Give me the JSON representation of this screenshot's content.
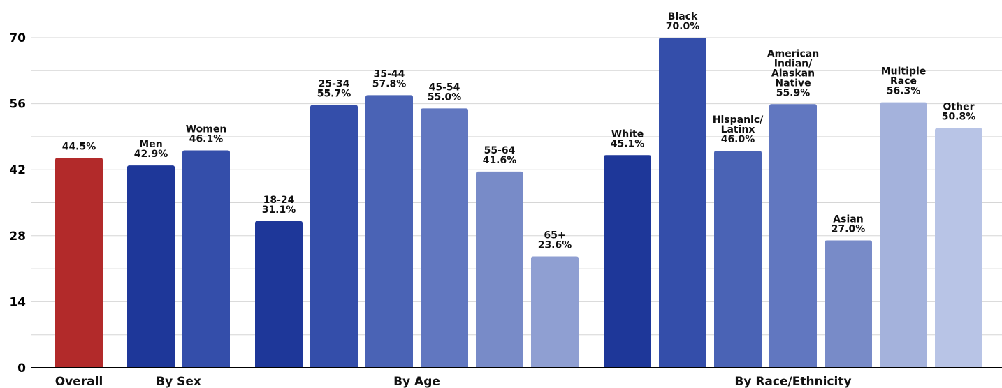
{
  "chart_data": {
    "type": "bar",
    "ylim": [
      0,
      70
    ],
    "yticks": [
      0,
      14,
      28,
      42,
      56,
      70
    ],
    "grid": true,
    "bars": [
      {
        "label": "",
        "value": 44.5,
        "value_text": "44.5%",
        "color": "#b22a2a"
      },
      {
        "label": "Men",
        "value": 42.9,
        "value_text": "42.9%",
        "color": "#1e3799"
      },
      {
        "label": "Women",
        "value": 46.1,
        "value_text": "46.1%",
        "color": "#344eaa"
      },
      {
        "label": "18-24",
        "value": 31.1,
        "value_text": "31.1%",
        "color": "#1e3799"
      },
      {
        "label": "25-34",
        "value": 55.7,
        "value_text": "55.7%",
        "color": "#344eaa"
      },
      {
        "label": "35-44",
        "value": 57.8,
        "value_text": "57.8%",
        "color": "#4a63b5"
      },
      {
        "label": "45-54",
        "value": 55.0,
        "value_text": "55.0%",
        "color": "#6177c0"
      },
      {
        "label": "55-64",
        "value": 41.6,
        "value_text": "41.6%",
        "color": "#788bc8"
      },
      {
        "label": "65+",
        "value": 23.6,
        "value_text": "23.6%",
        "color": "#8f9fd2"
      },
      {
        "label": "White",
        "value": 45.1,
        "value_text": "45.1%",
        "color": "#1e3799"
      },
      {
        "label": "Black",
        "value": 70.0,
        "value_text": "70.0%",
        "color": "#344eaa"
      },
      {
        "label": "Hispanic/\nLatinx",
        "value": 46.0,
        "value_text": "46.0%",
        "color": "#4a63b5"
      },
      {
        "label": "American\nIndian/\nAlaskan\nNative",
        "value": 55.9,
        "value_text": "55.9%",
        "color": "#6177c0"
      },
      {
        "label": "Asian",
        "value": 27.0,
        "value_text": "27.0%",
        "color": "#788bc8"
      },
      {
        "label": "Multiple\nRace",
        "value": 56.3,
        "value_text": "56.3%",
        "color": "#a4b2dc"
      },
      {
        "label": "Other",
        "value": 50.8,
        "value_text": "50.8%",
        "color": "#b8c4e6"
      }
    ],
    "groups": [
      {
        "name": "Overall",
        "first": 0,
        "last": 0
      },
      {
        "name": "By Sex",
        "first": 1,
        "last": 2
      },
      {
        "name": "By Age",
        "first": 3,
        "last": 8
      },
      {
        "name": "By Race/Ethnicity",
        "first": 9,
        "last": 15
      }
    ]
  }
}
